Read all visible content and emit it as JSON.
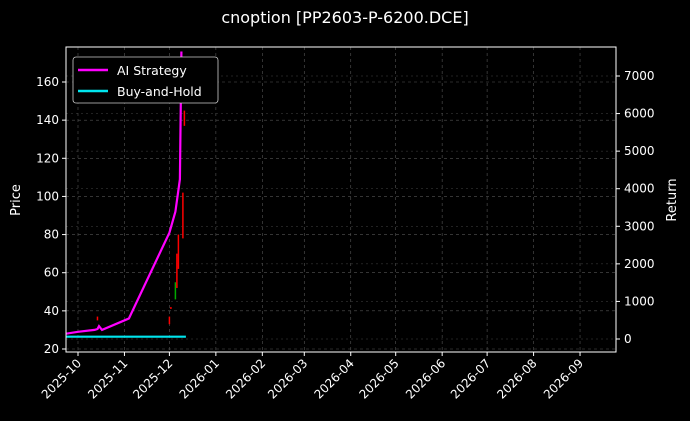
{
  "title": "cnoption [PP2603-P-6200.DCE]",
  "chart_data": {
    "type": "line",
    "title": "cnoption [PP2603-P-6200.DCE]",
    "xlabel": "",
    "ylabel": "Price",
    "y2label": "Return",
    "ylim": [
      19,
      175
    ],
    "y2lim": [
      -300,
      7700
    ],
    "yticks": [
      20,
      40,
      60,
      80,
      100,
      120,
      140,
      160
    ],
    "y2ticks": [
      0,
      1000,
      2000,
      3000,
      4000,
      5000,
      6000,
      7000
    ],
    "xticks": [
      "2025-10",
      "2025-11",
      "2025-12",
      "2026-01",
      "2026-02",
      "2026-03",
      "2026-04",
      "2026-05",
      "2026-06",
      "2026-07",
      "2026-08",
      "2026-09"
    ],
    "grid": true,
    "legend_position": "upper left",
    "series": [
      {
        "name": "AI Strategy",
        "axis": "price",
        "color": "#ff00ff",
        "x": [
          "2025-09-23",
          "2025-10-01",
          "2025-10-12",
          "2025-10-14",
          "2025-10-15",
          "2025-10-17",
          "2025-11-04",
          "2025-12-01",
          "2025-12-05",
          "2025-12-08",
          "2025-12-09"
        ],
        "values": [
          28,
          29,
          30,
          30.5,
          32,
          30,
          36,
          81,
          92,
          109,
          176
        ]
      },
      {
        "name": "Buy-and-Hold",
        "axis": "return",
        "color": "#00e5ee",
        "x": [
          "2025-09-23",
          "2025-12-12"
        ],
        "values": [
          60,
          60
        ]
      }
    ],
    "candles": [
      {
        "x": "2025-10-14",
        "low": 35,
        "high": 37,
        "color": "#ff0000"
      },
      {
        "x": "2025-12-01",
        "low": 33,
        "high": 37,
        "color": "#ff0000"
      },
      {
        "x": "2025-12-02",
        "low": 41,
        "high": 42,
        "color": "#ff0000"
      },
      {
        "x": "2025-12-05",
        "low": 46,
        "high": 55,
        "color": "#00aa00"
      },
      {
        "x": "2025-12-06",
        "low": 52,
        "high": 70,
        "color": "#ff0000"
      },
      {
        "x": "2025-12-07",
        "low": 62,
        "high": 80,
        "color": "#ff0000"
      },
      {
        "x": "2025-12-10",
        "low": 78,
        "high": 102,
        "color": "#ff0000"
      },
      {
        "x": "2025-12-11",
        "low": 137,
        "high": 145,
        "color": "#ff0000"
      }
    ]
  }
}
